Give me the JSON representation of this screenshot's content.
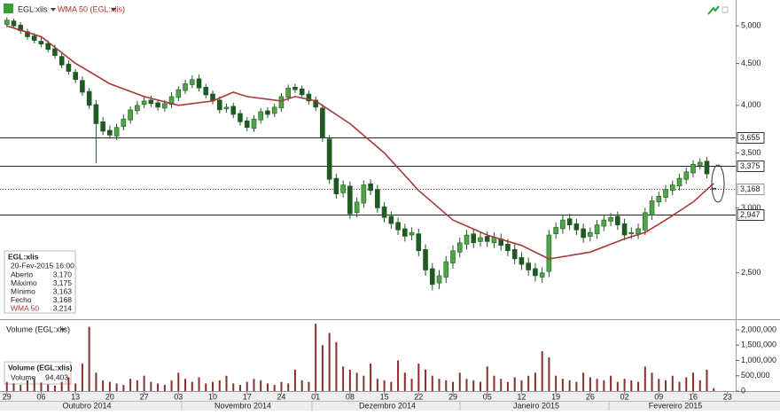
{
  "chart_data": {
    "type": "candlestick",
    "header": {
      "symbol": "EGL:xlis",
      "indicator": "WMA 50 (EGL:xlis)"
    },
    "up_color": "#4fa545",
    "down_color": "#1e5a22",
    "opens": [
      5020,
      5070,
      5010,
      4920,
      4860,
      4790,
      4760,
      4690,
      4590,
      4490,
      4390,
      4290,
      4160,
      4010,
      3820,
      3730,
      3670,
      3770,
      3840,
      3940,
      4010,
      4060,
      4030,
      3970,
      4010,
      4090,
      4170,
      4240,
      4310,
      4210,
      4130,
      4060,
      3960,
      3990,
      3910,
      3830,
      3750,
      3840,
      3940,
      3910,
      3970,
      4090,
      4210,
      4190,
      4130,
      4060,
      3970,
      3640,
      3260,
      3130,
      3190,
      2960,
      3040,
      3210,
      3160,
      3010,
      2930,
      2880,
      2830,
      2780,
      2790,
      2670,
      2530,
      2430,
      2470,
      2570,
      2650,
      2710,
      2790,
      2730,
      2770,
      2720,
      2750,
      2710,
      2670,
      2610,
      2570,
      2530,
      2470,
      2510,
      2790,
      2830,
      2910,
      2870,
      2830,
      2770,
      2790,
      2850,
      2890,
      2930,
      2870,
      2790,
      2790,
      2820,
      2940,
      3050,
      3090,
      3150,
      3190,
      3250,
      3310,
      3380,
      3420,
      3170
    ],
    "highs": [
      5120,
      5100,
      5050,
      4960,
      4900,
      4840,
      4800,
      4740,
      4640,
      4540,
      4430,
      4340,
      4200,
      4060,
      3870,
      3780,
      3800,
      3900,
      3990,
      4050,
      4100,
      4110,
      4070,
      4060,
      4150,
      4220,
      4300,
      4350,
      4360,
      4250,
      4170,
      4100,
      4020,
      4030,
      3950,
      3870,
      3890,
      3970,
      3980,
      4020,
      4140,
      4240,
      4250,
      4230,
      4170,
      4100,
      4010,
      3680,
      3300,
      3240,
      3230,
      3090,
      3240,
      3250,
      3200,
      3050,
      2970,
      2920,
      2870,
      2840,
      2830,
      2710,
      2570,
      2520,
      2620,
      2700,
      2760,
      2820,
      2830,
      2800,
      2810,
      2800,
      2790,
      2750,
      2710,
      2650,
      2610,
      2570,
      2540,
      2820,
      2880,
      2940,
      2950,
      2910,
      2870,
      2840,
      2900,
      2940,
      2960,
      2970,
      2910,
      2840,
      2870,
      3000,
      3100,
      3140,
      3200,
      3240,
      3300,
      3360,
      3430,
      3450,
      3460,
      3175
    ],
    "lows": [
      4980,
      4960,
      4890,
      4810,
      4760,
      4710,
      4640,
      4560,
      4440,
      4360,
      4260,
      4110,
      3960,
      3400,
      3680,
      3640,
      3630,
      3730,
      3800,
      3900,
      3970,
      3980,
      3940,
      3930,
      3970,
      4050,
      4130,
      4200,
      4160,
      4080,
      4010,
      3910,
      3920,
      3860,
      3780,
      3720,
      3710,
      3800,
      3860,
      3870,
      3930,
      4050,
      4140,
      4080,
      4010,
      3940,
      3610,
      3210,
      3080,
      3090,
      2910,
      2920,
      3000,
      3110,
      2960,
      2880,
      2830,
      2780,
      2730,
      2740,
      2620,
      2480,
      2380,
      2390,
      2430,
      2530,
      2610,
      2670,
      2680,
      2690,
      2690,
      2680,
      2660,
      2620,
      2560,
      2520,
      2480,
      2440,
      2430,
      2470,
      2750,
      2790,
      2820,
      2780,
      2720,
      2730,
      2750,
      2810,
      2850,
      2820,
      2740,
      2750,
      2750,
      2780,
      2900,
      3010,
      3050,
      3110,
      3150,
      3210,
      3270,
      3340,
      3260,
      3163
    ],
    "closes": [
      5080,
      5000,
      4930,
      4850,
      4800,
      4750,
      4680,
      4600,
      4480,
      4400,
      4300,
      4150,
      4000,
      3800,
      3720,
      3680,
      3760,
      3850,
      3950,
      4000,
      4050,
      4020,
      3980,
      4020,
      4100,
      4180,
      4250,
      4300,
      4200,
      4120,
      4050,
      3950,
      3980,
      3900,
      3820,
      3760,
      3850,
      3930,
      3900,
      3980,
      4100,
      4200,
      4180,
      4120,
      4050,
      3980,
      3650,
      3250,
      3120,
      3200,
      2950,
      3050,
      3200,
      3150,
      3000,
      2920,
      2870,
      2820,
      2770,
      2800,
      2660,
      2520,
      2420,
      2480,
      2580,
      2660,
      2720,
      2780,
      2720,
      2760,
      2730,
      2760,
      2700,
      2660,
      2600,
      2560,
      2520,
      2480,
      2500,
      2780,
      2840,
      2900,
      2860,
      2820,
      2760,
      2800,
      2860,
      2900,
      2920,
      2860,
      2780,
      2800,
      2830,
      2960,
      3060,
      3100,
      3160,
      3200,
      3260,
      3320,
      3390,
      3410,
      3300,
      3168
    ],
    "wma": {
      "name": "WMA 50",
      "color": "#a83a3a",
      "x": [
        0,
        5,
        10,
        15,
        20,
        25,
        30,
        33,
        35,
        40,
        42,
        45,
        50,
        55,
        60,
        65,
        70,
        75,
        79,
        85,
        90,
        93,
        96,
        100,
        103
      ],
      "values": [
        5000,
        4850,
        4500,
        4250,
        4100,
        4000,
        4050,
        4150,
        4100,
        4050,
        4100,
        4050,
        3800,
        3500,
        3150,
        2900,
        2780,
        2700,
        2600,
        2650,
        2750,
        2800,
        2900,
        3050,
        3214
      ]
    },
    "yscale": "log",
    "ylim": [
      2195,
      5310
    ],
    "yticks": [
      {
        "value": 2500,
        "label": "2,500"
      },
      {
        "value": 3000,
        "label": "3,000"
      },
      {
        "value": 3500,
        "label": "3,500"
      },
      {
        "value": 4000,
        "label": "4,000"
      },
      {
        "value": 4500,
        "label": "4,500"
      },
      {
        "value": 5000,
        "label": "5,000"
      }
    ],
    "levels": [
      {
        "value": 3655,
        "label": "3,655"
      },
      {
        "value": 3375,
        "label": "3,375"
      },
      {
        "value": 2947,
        "label": "2,947"
      }
    ],
    "last": {
      "value": 3168,
      "label": "3,168",
      "color": "#c0392b"
    },
    "xlim": [
      -1,
      106.2
    ],
    "xticks": [
      {
        "value": 0,
        "label": "29"
      },
      {
        "value": 5,
        "label": "06"
      },
      {
        "value": 10,
        "label": "13"
      },
      {
        "value": 15,
        "label": "20"
      },
      {
        "value": 20,
        "label": "27"
      },
      {
        "value": 25,
        "label": "03"
      },
      {
        "value": 30,
        "label": "10"
      },
      {
        "value": 35,
        "label": "17"
      },
      {
        "value": 40,
        "label": "24"
      },
      {
        "value": 45,
        "label": "01"
      },
      {
        "value": 50,
        "label": "08"
      },
      {
        "value": 55,
        "label": "15"
      },
      {
        "value": 60,
        "label": "22"
      },
      {
        "value": 65,
        "label": "29"
      },
      {
        "value": 70,
        "label": "05"
      },
      {
        "value": 75,
        "label": "12"
      },
      {
        "value": 80,
        "label": "19"
      },
      {
        "value": 85,
        "label": "26"
      },
      {
        "value": 90,
        "label": "02"
      },
      {
        "value": 95,
        "label": "09"
      },
      {
        "value": 100,
        "label": "16"
      },
      {
        "value": 105,
        "label": "23"
      }
    ],
    "months": [
      "Outubro 2014",
      "Novembro 2014",
      "Dezembro 2014",
      "Janeiro 2015",
      "Fevereiro 2015"
    ],
    "volume": {
      "title": "Volume (EGL:xlis)",
      "color": "#8a2d2d",
      "values": [
        300000,
        250000,
        200000,
        350000,
        400000,
        280000,
        220000,
        180000,
        300000,
        450000,
        250000,
        900000,
        2100000,
        600000,
        350000,
        300000,
        250000,
        200000,
        400000,
        350000,
        500000,
        300000,
        250000,
        200000,
        350000,
        600000,
        400000,
        300000,
        450000,
        250000,
        300000,
        350000,
        500000,
        250000,
        200000,
        300000,
        400000,
        350000,
        250000,
        200000,
        300000,
        250000,
        700000,
        350000,
        300000,
        2200000,
        1500000,
        1900000,
        1600000,
        800000,
        700000,
        600000,
        500000,
        900000,
        400000,
        350000,
        300000,
        1000000,
        600000,
        400000,
        900000,
        700000,
        500000,
        400000,
        350000,
        300000,
        600000,
        400000,
        350000,
        300000,
        800000,
        500000,
        400000,
        300000,
        450000,
        350000,
        500000,
        600000,
        1300000,
        1100000,
        500000,
        400000,
        350000,
        300000,
        600000,
        450000,
        400000,
        350000,
        500000,
        300000,
        400000,
        350000,
        300000,
        800000,
        600000,
        400000,
        350000,
        500000,
        300000,
        450000,
        600000,
        350000,
        700000,
        94403
      ],
      "ylim": [
        0,
        2260000
      ],
      "yticks": [
        0,
        {
          "value": 500000,
          "label": "500,000"
        },
        {
          "value": 1000000,
          "label": "1,000,000"
        },
        {
          "value": 1500000,
          "label": "1,500,000"
        },
        {
          "value": 2000000,
          "label": "2,000,000"
        }
      ]
    },
    "info": {
      "symbol": "EGL:xlis",
      "datetime": "20-Fev-2015 16:00",
      "rows": [
        {
          "name": "Aberto",
          "value": "3,170"
        },
        {
          "name": "Máximo",
          "value": "3,175"
        },
        {
          "name": "Mínimo",
          "value": "3,163"
        },
        {
          "name": "Fecho",
          "value": "3,168"
        },
        {
          "name": "WMA 50",
          "value": "3,214"
        }
      ]
    },
    "volume_info": {
      "title": "Volume (EGL:xlis)",
      "name": "Volume",
      "value": "94,403"
    }
  }
}
